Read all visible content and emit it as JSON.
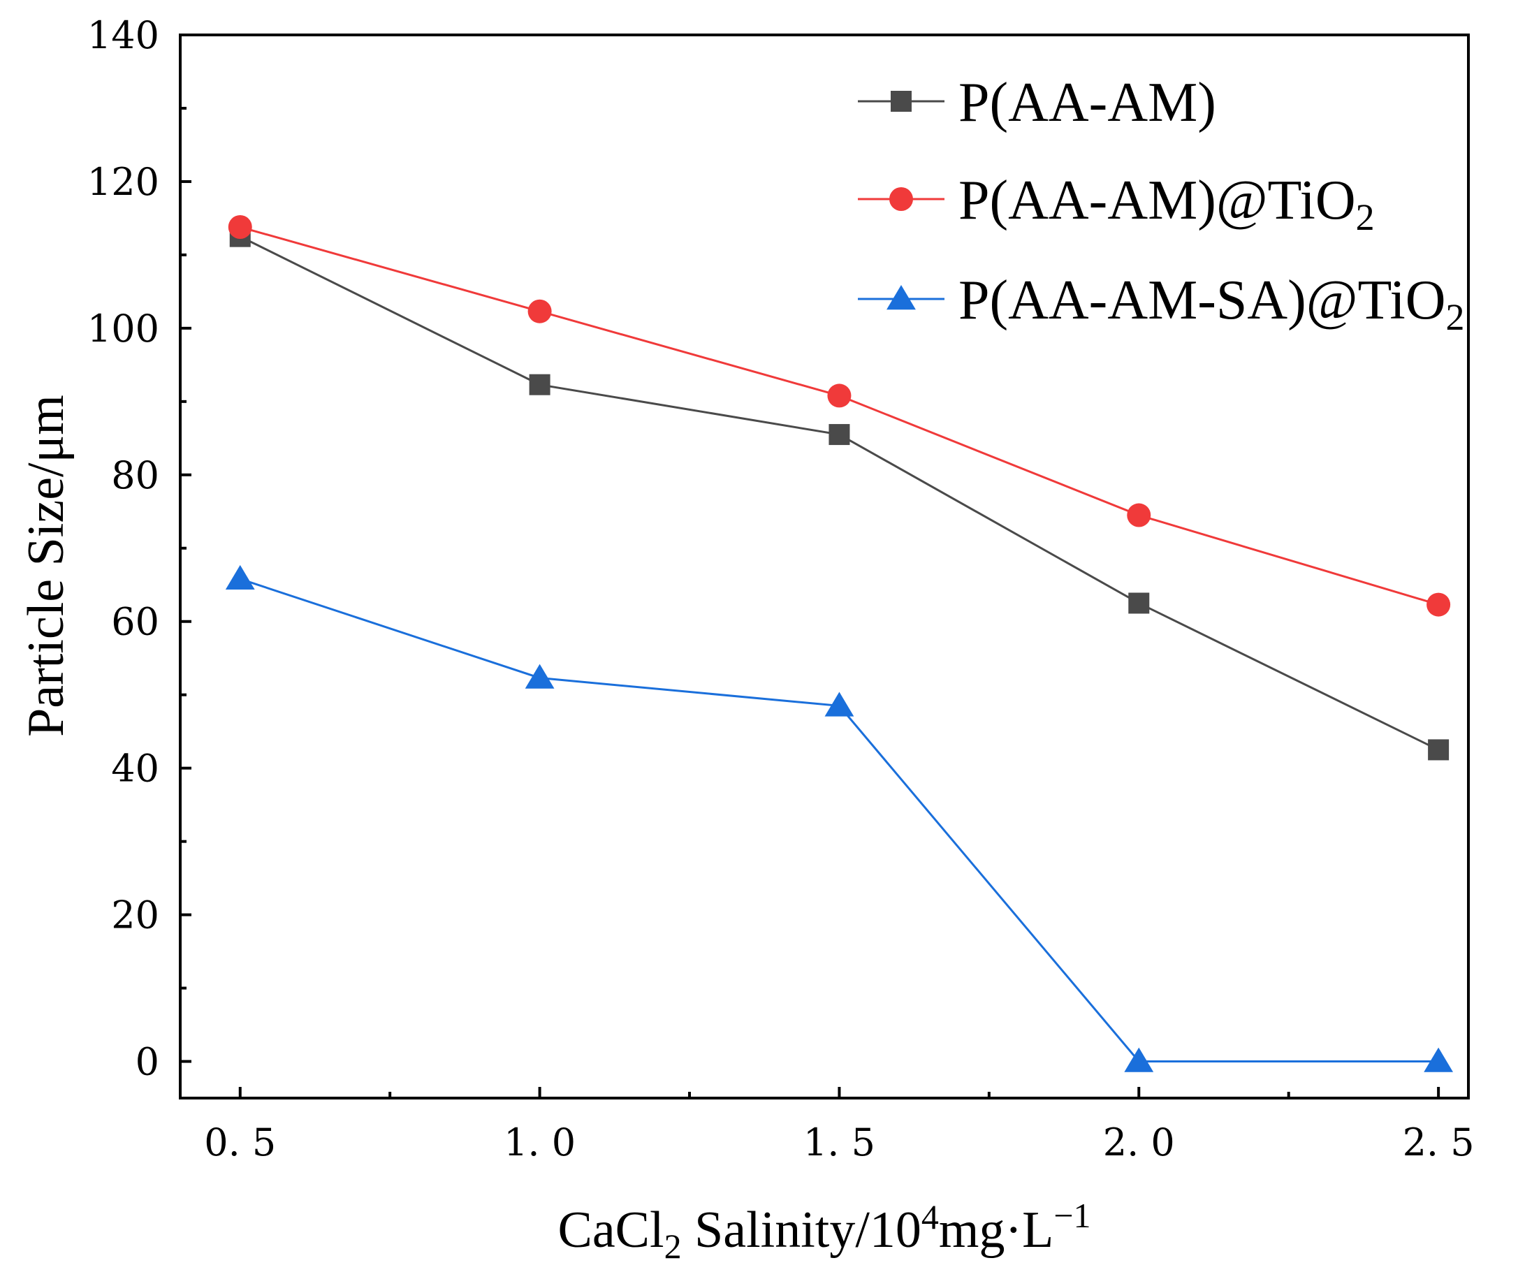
{
  "chart_data": {
    "type": "line",
    "x": [
      0.5,
      1.0,
      1.5,
      2.0,
      2.5
    ],
    "x_tick_labels": [
      "0. 5",
      "1. 0",
      "1. 5",
      "2. 0",
      "2. 5"
    ],
    "y_ticks": [
      0,
      20,
      40,
      60,
      80,
      100,
      120,
      140
    ],
    "xlim": [
      0.4,
      2.55
    ],
    "ylim": [
      -5,
      140
    ],
    "grid": false,
    "legend_position": "top-right",
    "xlabel": {
      "main": "CaCl",
      "sub": "2",
      "mid": " Salinity/10",
      "sup": "4",
      "tail": "mg·L",
      "sup2": "−1"
    },
    "ylabel": "Particle Size/μm",
    "series": [
      {
        "name": "P(AA-AM)",
        "name_main": "P(AA-AM)",
        "name_sub": "",
        "color": "#4a4a4a",
        "marker": "square",
        "values": [
          112.5,
          92.3,
          85.5,
          62.5,
          42.5
        ]
      },
      {
        "name": "P(AA-AM)@TiO2",
        "name_main": "P(AA-AM)@TiO",
        "name_sub": "2",
        "color": "#f03a3a",
        "marker": "circle",
        "values": [
          113.8,
          102.3,
          90.8,
          74.5,
          62.3
        ]
      },
      {
        "name": "P(AA-AM-SA)@TiO2",
        "name_main": "P(AA-AM-SA)@TiO",
        "name_sub": "2",
        "color": "#1a6fdb",
        "marker": "triangle",
        "values": [
          65.8,
          52.3,
          48.5,
          0,
          0
        ]
      }
    ]
  }
}
